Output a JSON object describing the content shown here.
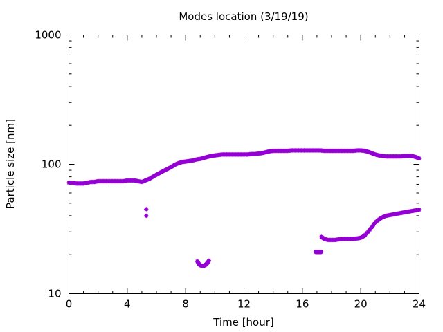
{
  "chart_data": {
    "type": "scatter",
    "title": "Modes location (3/19/19)",
    "xlabel": "Time [hour]",
    "ylabel": "Particle size [nm]",
    "xlim": [
      0,
      24
    ],
    "ylim": [
      10,
      1000
    ],
    "yscale": "log",
    "x_ticks": [
      0,
      4,
      8,
      12,
      16,
      20,
      24
    ],
    "x_tick_labels": [
      "0",
      "4",
      "8",
      "12",
      "16",
      "20",
      "24"
    ],
    "y_ticks": [
      10,
      100,
      1000
    ],
    "y_tick_labels": [
      "10",
      "100",
      "1000"
    ],
    "grid": false,
    "legend": "none",
    "marker_color": "#9400D3",
    "series": [
      {
        "x": [
          0.0,
          0.25,
          0.5,
          0.75,
          1.0,
          1.25,
          1.5,
          1.75,
          2.0,
          2.25,
          2.5,
          2.75,
          3.0,
          3.25,
          3.5,
          3.75,
          4.0,
          4.25,
          4.5,
          4.75,
          5.0,
          5.25,
          5.5,
          5.75,
          6.0,
          6.25,
          6.5,
          6.75,
          7.0,
          7.25,
          7.5,
          7.75,
          8.0,
          8.25,
          8.5,
          8.75,
          9.0,
          9.25,
          9.5,
          9.75,
          10.0,
          10.25,
          10.5,
          10.75,
          11.0,
          11.25,
          11.5,
          11.75,
          12.0,
          12.25,
          12.5,
          12.75,
          13.0,
          13.25,
          13.5,
          13.75,
          14.0,
          14.25,
          14.5,
          14.75,
          15.0,
          15.25,
          15.5,
          15.75,
          16.0,
          16.25,
          16.5,
          16.75,
          17.0,
          17.25,
          17.5,
          17.75,
          18.0,
          18.25,
          18.5,
          18.75,
          19.0,
          19.25,
          19.5,
          19.75,
          20.0,
          20.25,
          20.5,
          20.75,
          21.0,
          21.25,
          21.5,
          21.75,
          22.0,
          22.25,
          22.5,
          22.75,
          23.0,
          23.25,
          23.5,
          23.75,
          24.0
        ],
        "y": [
          72,
          72,
          71,
          71,
          71,
          72,
          73,
          73,
          74,
          74,
          74,
          74,
          74,
          74,
          74,
          74,
          75,
          75,
          75,
          74,
          73,
          75,
          77,
          80,
          83,
          86,
          89,
          92,
          95,
          99,
          102,
          104,
          105,
          106,
          107,
          109,
          110,
          112,
          114,
          116,
          117,
          118,
          119,
          119,
          119,
          119,
          119,
          119,
          119,
          119,
          120,
          120,
          121,
          122,
          124,
          126,
          127,
          127,
          127,
          127,
          127,
          128,
          128,
          128,
          128,
          128,
          128,
          128,
          128,
          128,
          127,
          127,
          127,
          127,
          127,
          127,
          127,
          127,
          127,
          128,
          128,
          127,
          125,
          122,
          119,
          117,
          116,
          115,
          115,
          115,
          115,
          115,
          116,
          116,
          116,
          114,
          111
        ]
      },
      {
        "x": [
          5.3,
          5.3
        ],
        "y": [
          45,
          40
        ]
      },
      {
        "x": [
          8.8,
          8.9,
          9.0,
          9.1,
          9.2,
          9.3,
          9.4,
          9.5,
          9.6
        ],
        "y": [
          17.8,
          17.0,
          16.6,
          16.4,
          16.4,
          16.5,
          16.8,
          17.3,
          18.0
        ]
      },
      {
        "x": [
          16.9,
          17.0,
          17.1,
          17.2,
          17.3
        ],
        "y": [
          21,
          21,
          21,
          21,
          21
        ]
      },
      {
        "x": [
          17.3,
          17.5,
          17.75,
          18.0,
          18.25,
          18.5,
          18.75,
          19.0,
          19.25,
          19.5,
          19.75,
          20.0,
          20.25,
          20.5,
          20.75,
          21.0,
          21.25,
          21.5,
          21.75,
          22.0,
          22.25,
          22.5,
          22.75,
          23.0,
          23.25,
          23.5,
          23.75,
          24.0
        ],
        "y": [
          27.5,
          26.5,
          26.0,
          26.0,
          26.0,
          26.3,
          26.5,
          26.5,
          26.5,
          26.5,
          26.7,
          27,
          28,
          30,
          32.5,
          35.5,
          37.5,
          39,
          40,
          40.5,
          41,
          41.5,
          42,
          42.5,
          43,
          43.5,
          44,
          44.5
        ]
      }
    ]
  }
}
